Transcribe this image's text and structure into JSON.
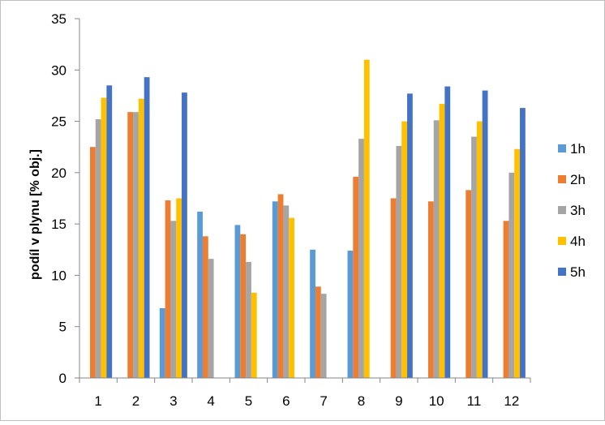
{
  "chart_data": {
    "type": "bar",
    "title": "",
    "xlabel": "",
    "ylabel": "podíl v plynu [% obj.]",
    "ylim": [
      0,
      35
    ],
    "yticks": [
      0,
      5,
      10,
      15,
      20,
      25,
      30,
      35
    ],
    "categories": [
      "1",
      "2",
      "3",
      "4",
      "5",
      "6",
      "7",
      "8",
      "9",
      "10",
      "11",
      "12"
    ],
    "legend_position": "right",
    "grid": false,
    "series": [
      {
        "name": "1h",
        "color": "#5B9BD5",
        "values": [
          0,
          0,
          6.8,
          16.2,
          14.9,
          17.2,
          12.5,
          12.4,
          0,
          0,
          0,
          0
        ]
      },
      {
        "name": "2h",
        "color": "#ED7D31",
        "values": [
          22.5,
          25.9,
          17.3,
          13.8,
          14.0,
          17.9,
          8.9,
          19.6,
          17.5,
          17.2,
          18.3,
          15.3
        ]
      },
      {
        "name": "3h",
        "color": "#A5A5A5",
        "values": [
          25.2,
          25.9,
          15.3,
          11.6,
          11.3,
          16.8,
          8.2,
          23.3,
          22.6,
          25.1,
          23.5,
          20.0
        ]
      },
      {
        "name": "4h",
        "color": "#FFC000",
        "values": [
          27.3,
          27.2,
          17.5,
          0,
          8.3,
          15.6,
          0,
          31.0,
          25.0,
          26.7,
          25.0,
          22.3
        ]
      },
      {
        "name": "5h",
        "color": "#4472C4",
        "values": [
          28.5,
          29.3,
          27.8,
          0,
          0,
          0,
          0,
          0,
          27.7,
          28.4,
          28.0,
          26.3
        ]
      }
    ]
  }
}
